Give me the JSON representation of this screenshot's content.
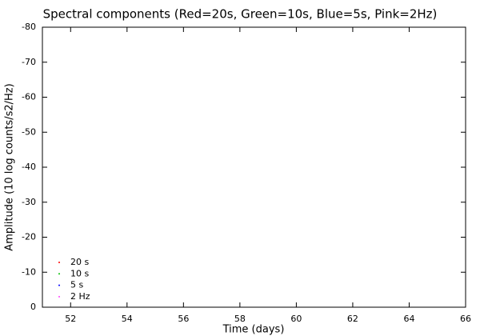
{
  "chart_data": {
    "type": "scatter",
    "title": "Spectral components (Red=20s, Green=10s, Blue=5s, Pink=2Hz)",
    "x_label": "Time (days)",
    "y_label": "Amplitude (10 log counts/s2/Hz)",
    "x": [],
    "series": [
      {
        "name": "20 s",
        "color": "#ff0000",
        "values": []
      },
      {
        "name": "10 s",
        "color": "#00c000",
        "values": []
      },
      {
        "name": "5 s",
        "color": "#0000ff",
        "values": []
      },
      {
        "name": "2 Hz",
        "color": "#ff40ff",
        "values": []
      }
    ],
    "xlim": [
      51,
      66
    ],
    "xticks": [
      52,
      54,
      56,
      58,
      60,
      62,
      64,
      66
    ],
    "ylim": [
      0,
      -80
    ],
    "yticks": [
      -80,
      -70,
      -60,
      -50,
      -40,
      -30,
      -20,
      -10,
      0
    ],
    "grid": false,
    "legend": "bottom-left"
  }
}
